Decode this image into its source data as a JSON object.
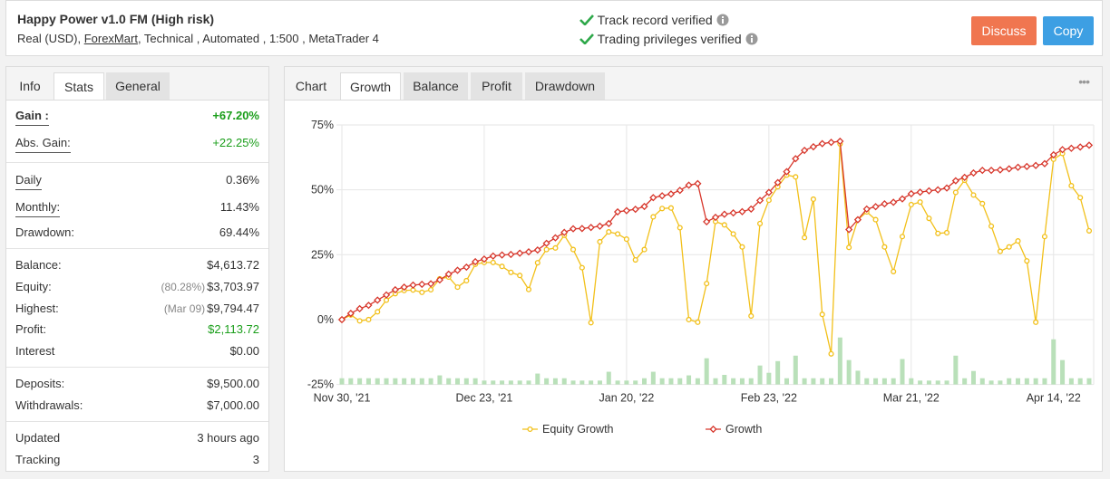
{
  "header": {
    "title": "Happy Power v1.0 FM (High risk)",
    "account_type": "Real (USD),",
    "broker": "ForexMart",
    "details": ", Technical , Automated , 1:500 , MetaTrader 4",
    "verification": [
      "Track record verified",
      "Trading privileges verified"
    ],
    "buttons": [
      "Discuss",
      "Copy"
    ]
  },
  "stats_panel": {
    "tabs": [
      "Info",
      "Stats",
      "General"
    ],
    "rows": [
      {
        "label": "Gain :",
        "value": "+67.20%"
      },
      {
        "label": "Abs. Gain:",
        "value": "+22.25%"
      },
      {
        "label": "Daily",
        "value": "0.36%"
      },
      {
        "label": "Monthly:",
        "value": "11.43%"
      },
      {
        "label": "Drawdown:",
        "value": "69.44%"
      },
      {
        "label": "Balance:",
        "value": "$4,613.72"
      },
      {
        "label": "Equity:",
        "note": "(80.28%)",
        "value": "$3,703.97"
      },
      {
        "label": "Highest:",
        "note": "(Mar 09)",
        "value": "$9,794.47"
      },
      {
        "label": "Profit:",
        "value": "$2,113.72"
      },
      {
        "label": "Interest",
        "value": "$0.00"
      },
      {
        "label": "Deposits:",
        "value": "$9,500.00"
      },
      {
        "label": "Withdrawals:",
        "value": "$7,000.00"
      },
      {
        "label": "Updated",
        "value": "3 hours ago"
      },
      {
        "label": "Tracking",
        "value": "3"
      }
    ]
  },
  "chart_panel": {
    "tabs": [
      "Chart",
      "Growth",
      "Balance",
      "Profit",
      "Drawdown"
    ],
    "menu": "•••"
  },
  "chart_data": {
    "type": "line",
    "categories": [
      "Nov 30, '21",
      null,
      null,
      null,
      null,
      null,
      null,
      null,
      null,
      null,
      null,
      null,
      null,
      null,
      null,
      null,
      "Dec 23, '21",
      null,
      null,
      null,
      null,
      null,
      null,
      null,
      null,
      null,
      null,
      null,
      null,
      null,
      null,
      null,
      "Jan 20, '22",
      null,
      null,
      null,
      null,
      null,
      null,
      null,
      null,
      null,
      null,
      null,
      null,
      null,
      null,
      null,
      "Feb 23, '22",
      null,
      null,
      null,
      null,
      null,
      null,
      null,
      null,
      null,
      null,
      null,
      null,
      null,
      null,
      null,
      "Mar 21, '22",
      null,
      null,
      null,
      null,
      null,
      null,
      null,
      null,
      null,
      null,
      null,
      null,
      null,
      null,
      null,
      "Apr 14, '22",
      null,
      null,
      null,
      null
    ],
    "series": [
      {
        "name": "Equity Growth",
        "color": "#f2c01a",
        "marker": "circle",
        "values": [
          0,
          1.8,
          -0.5,
          0,
          3,
          7.5,
          10,
          11.2,
          11.4,
          10.5,
          11.5,
          15.7,
          16.4,
          12.5,
          15,
          21.3,
          22,
          22,
          20.5,
          18.2,
          17,
          11.6,
          21.9,
          27,
          27.6,
          32.5,
          27,
          20,
          -1.2,
          30,
          33.8,
          33,
          31,
          23,
          27,
          39.6,
          42.8,
          43,
          35.4,
          0,
          -1,
          13.9,
          37.8,
          36.5,
          33,
          28,
          1.4,
          37,
          46,
          51.2,
          55.7,
          55,
          31.6,
          46.4,
          2,
          -13.2,
          67.7,
          27.8,
          38.5,
          41.5,
          38.5,
          28,
          18.5,
          32,
          44.3,
          45.3,
          39,
          33.2,
          33.5,
          49,
          53.7,
          48,
          44.7,
          36,
          26.3,
          28,
          30.3,
          22.6,
          -1,
          32,
          61.8,
          64,
          51.6,
          47,
          34.2
        ]
      },
      {
        "name": "Growth",
        "color": "#d7372c",
        "marker": "diamond",
        "values": [
          0,
          2.4,
          4.2,
          5.5,
          7.5,
          9.5,
          11.5,
          12.5,
          13.3,
          13.6,
          13.8,
          15.3,
          17.5,
          19,
          20.2,
          22.3,
          23.3,
          24.5,
          24.9,
          25.1,
          25.6,
          26.1,
          26.8,
          29.4,
          31.5,
          33.6,
          35,
          35.1,
          35.5,
          36,
          37,
          41.5,
          42,
          42.5,
          43.6,
          47,
          47.7,
          48.4,
          49.8,
          51.8,
          52.4,
          37.7,
          39.4,
          40.6,
          41.1,
          41.6,
          42.6,
          45.9,
          49,
          52.8,
          57,
          62,
          65.2,
          66.6,
          67.8,
          68.3,
          68.7,
          34.7,
          38.5,
          42.6,
          43.5,
          44.6,
          45.2,
          46.5,
          48.5,
          49.1,
          49.6,
          50,
          50.7,
          53.5,
          54.8,
          56.5,
          57.5,
          57.5,
          57.7,
          58.1,
          58.7,
          59,
          59.4,
          60.1,
          63.5,
          65.5,
          66,
          66.5,
          67.2
        ]
      }
    ],
    "bars": {
      "color": "#b9e0b9",
      "values": [
        -22.6,
        -22.6,
        -22.6,
        -22.6,
        -22.6,
        -22.6,
        -22.6,
        -22.6,
        -22.6,
        -22.6,
        -22.6,
        -21.5,
        -22.6,
        -22.6,
        -22.6,
        -22.6,
        -23.5,
        -23.5,
        -23.5,
        -23.5,
        -23.5,
        -23.5,
        -20.8,
        -22.6,
        -22.6,
        -22.6,
        -23.5,
        -23.5,
        -23.5,
        -23.5,
        -20.1,
        -23.5,
        -23.5,
        -23.5,
        -22.6,
        -20.1,
        -22.6,
        -22.6,
        -22.6,
        -21.5,
        -22.6,
        -14.9,
        -22.6,
        -21.3,
        -22.6,
        -22.6,
        -22.6,
        -17.7,
        -20.5,
        -16,
        -22.6,
        -13.9,
        -22.6,
        -22.6,
        -22.6,
        -22.6,
        -6.9,
        -15.6,
        -19.7,
        -22.6,
        -22.6,
        -22.6,
        -22.6,
        -15.2,
        -22.6,
        -23.5,
        -23.5,
        -23.5,
        -23.5,
        -13.9,
        -22.6,
        -19.8,
        -22.6,
        -23.5,
        -23.5,
        -22.6,
        -22.6,
        -22.6,
        -22.6,
        -22.6,
        -7.6,
        -15.6,
        -22.6,
        -22.6,
        -22.6
      ]
    },
    "ylim": [
      -25,
      75
    ],
    "yticks": [
      {
        "value": -25,
        "label": "-25%"
      },
      {
        "value": 0,
        "label": "0%"
      },
      {
        "value": 25,
        "label": "25%"
      },
      {
        "value": 50,
        "label": "50%"
      },
      {
        "value": 75,
        "label": "75%"
      }
    ],
    "grid": true
  }
}
